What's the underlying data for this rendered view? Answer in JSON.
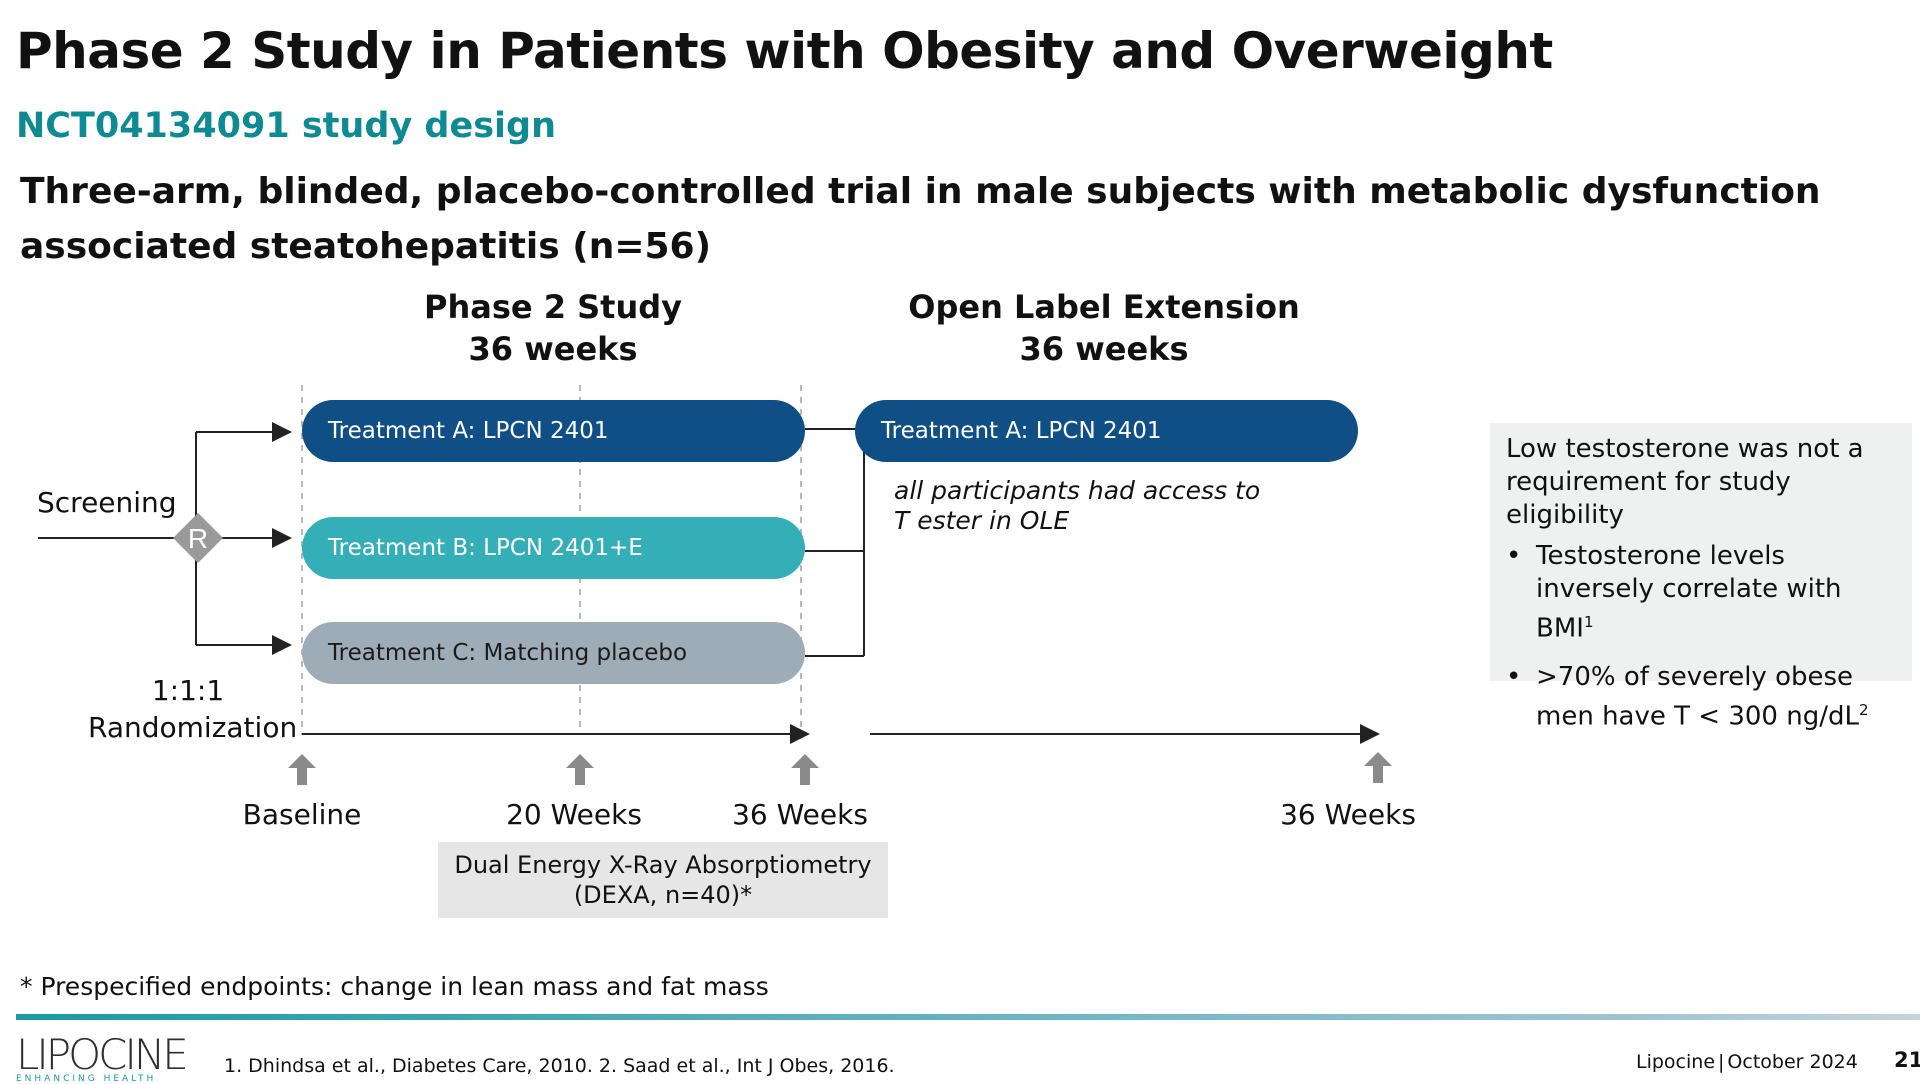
{
  "title": "Phase 2 Study in Patients with Obesity and Overweight",
  "subtitle": "NCT04134091 study design",
  "description": "Three-arm, blinded, placebo-controlled trial in male subjects with metabolic dysfunction associated steatohepatitis (n=56)",
  "phase2": {
    "heading": "Phase 2 Study",
    "duration": "36 weeks"
  },
  "ole": {
    "heading": "Open Label Extension",
    "duration": "36 weeks",
    "treatment": "Treatment A: LPCN 2401",
    "note_line1": "all participants had access to",
    "note_line2": "T ester in OLE"
  },
  "screening": "Screening",
  "randomization_marker": "R",
  "randomization_ratio": "1:1:1",
  "randomization_label": "Randomization",
  "treatments": [
    {
      "label": "Treatment A: LPCN 2401"
    },
    {
      "label": "Treatment B: LPCN 2401+E"
    },
    {
      "label": "Treatment C: Matching placebo"
    }
  ],
  "timepoints": [
    "Baseline",
    "20 Weeks",
    "36 Weeks",
    "36 Weeks"
  ],
  "dexa": {
    "line1": "Dual Energy X-Ray Absorptiometry",
    "line2": "(DEXA, n=40)*"
  },
  "sidebox": {
    "heading": "Low testosterone was not a requirement for study eligibility",
    "bullets": [
      {
        "text": "Testosterone levels inversely correlate with BMI",
        "sup": "1"
      },
      {
        "text": ">70% of severely obese men have T < 300 ng/dL",
        "sup": "2"
      }
    ]
  },
  "footnote": "* Prespecified endpoints: change in lean mass and fat mass",
  "references": "1. Dhindsa et al., Diabetes Care, 2010. 2. Saad et al., Int J Obes, 2016.",
  "logo": {
    "name": "LIPOCINE",
    "tagline": "ENHANCING HEALTH"
  },
  "company": "Lipocine",
  "date": "October 2024",
  "page_number": "21",
  "colors": {
    "teal": "#0e8a93",
    "navy": "#0f4f86",
    "aqua": "#35afb7",
    "gray": "#9eacb8"
  }
}
